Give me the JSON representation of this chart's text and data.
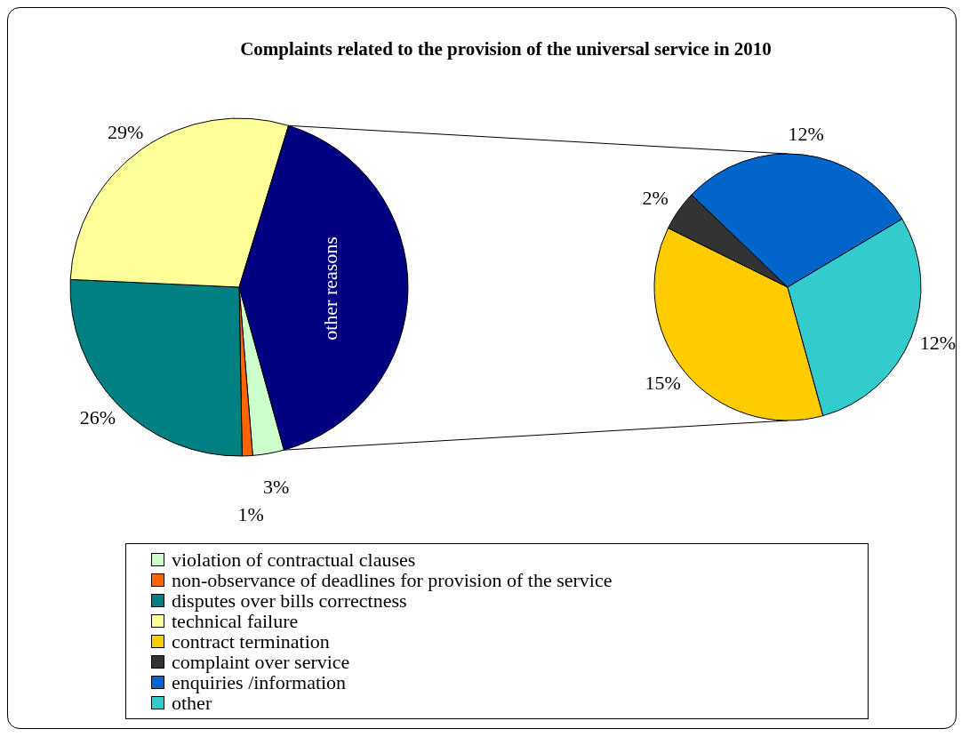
{
  "chart_data": [
    {
      "type": "pie",
      "title": "Complaints related to the provision of the universal service in 2010",
      "categories": [
        "violation of contractual clauses",
        "non-observance of deadlines for provision of the service",
        "disputes over bills correctness",
        "technical failure",
        "other reasons"
      ],
      "values": [
        3,
        1,
        26,
        29,
        41
      ],
      "colors": [
        "#ccffcc",
        "#ff6600",
        "#008080",
        "#ffff99",
        "#000080"
      ],
      "value_labels": [
        "3%",
        "1%",
        "26%",
        "29%",
        null
      ],
      "legend": "bottom"
    },
    {
      "type": "pie",
      "categories": [
        "contract termination",
        "complaint over service",
        "enquiries /information",
        "other"
      ],
      "values": [
        15,
        2,
        12,
        12
      ],
      "colors": [
        "#ffcc00",
        "#333333",
        "#0066cc",
        "#33cccc"
      ],
      "value_labels": [
        "15%",
        "2%",
        "12%",
        "12%"
      ],
      "legend": "bottom"
    }
  ]
}
